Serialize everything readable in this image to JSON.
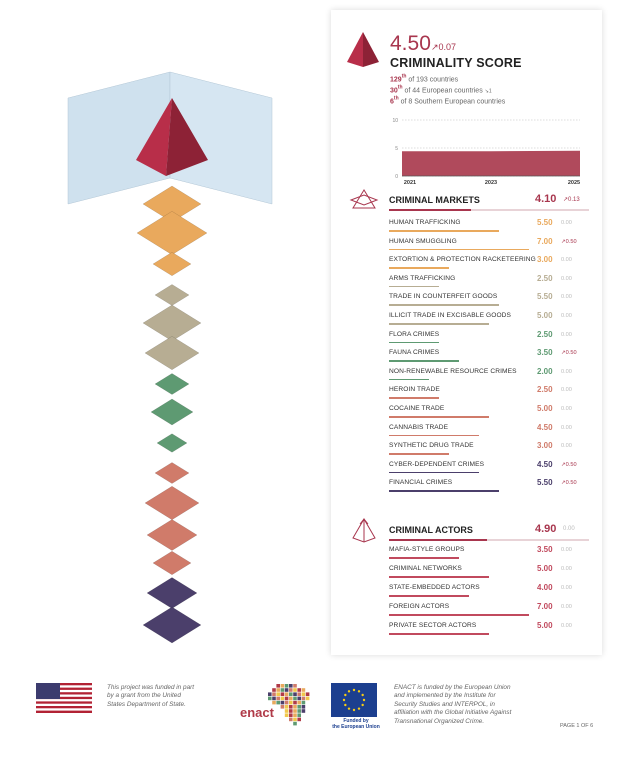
{
  "score": {
    "value": "4.50",
    "delta": "↗0.07",
    "title": "CRIMINALITY SCORE",
    "rank_world_pos": "129",
    "rank_world_suffix": "th",
    "rank_world_text": " of 193 countries",
    "rank_europe_pos": "30",
    "rank_europe_suffix": "th",
    "rank_europe_text": " of 44 European countries",
    "rank_europe_delta": "↘1",
    "rank_region_pos": "6",
    "rank_region_suffix": "th",
    "rank_region_text": " of 8 Southern European countries"
  },
  "mini_chart": {
    "type": "area",
    "x": [
      "2021",
      "2023",
      "2025"
    ],
    "y_ticks": [
      "10",
      "5",
      "0"
    ],
    "values": [
      4.43,
      4.43,
      4.5
    ],
    "ylim": [
      0,
      10
    ],
    "color": "#b04a5c"
  },
  "markets": {
    "title": "CRIMINAL MARKETS",
    "value": "4.10",
    "delta": "↗0.13",
    "items": [
      {
        "label": "HUMAN TRAFFICKING",
        "value": "5.50",
        "delta": "0.00",
        "up": false,
        "score": 5.5,
        "color": "#e9a95d"
      },
      {
        "label": "HUMAN SMUGGLING",
        "value": "7.00",
        "delta": "↗0.50",
        "up": true,
        "score": 7.0,
        "color": "#e9a95d"
      },
      {
        "label": "EXTORTION & PROTECTION RACKETEERING",
        "value": "3.00",
        "delta": "0.00",
        "up": false,
        "score": 3.0,
        "color": "#e9a95d"
      },
      {
        "label": "ARMS TRAFFICKING",
        "value": "2.50",
        "delta": "0.00",
        "up": false,
        "score": 2.5,
        "color": "#b7ad93"
      },
      {
        "label": "TRADE IN COUNTERFEIT GOODS",
        "value": "5.50",
        "delta": "0.00",
        "up": false,
        "score": 5.5,
        "color": "#b7ad93"
      },
      {
        "label": "ILLICIT TRADE IN EXCISABLE GOODS",
        "value": "5.00",
        "delta": "0.00",
        "up": false,
        "score": 5.0,
        "color": "#b7ad93"
      },
      {
        "label": "FLORA CRIMES",
        "value": "2.50",
        "delta": "0.00",
        "up": false,
        "score": 2.5,
        "color": "#5e9a72"
      },
      {
        "label": "FAUNA CRIMES",
        "value": "3.50",
        "delta": "↗0.50",
        "up": true,
        "score": 3.5,
        "color": "#5e9a72"
      },
      {
        "label": "NON-RENEWABLE RESOURCE CRIMES",
        "value": "2.00",
        "delta": "0.00",
        "up": false,
        "score": 2.0,
        "color": "#5e9a72"
      },
      {
        "label": "HEROIN TRADE",
        "value": "2.50",
        "delta": "0.00",
        "up": false,
        "score": 2.5,
        "color": "#d07b6a"
      },
      {
        "label": "COCAINE TRADE",
        "value": "5.00",
        "delta": "0.00",
        "up": false,
        "score": 5.0,
        "color": "#d07b6a"
      },
      {
        "label": "CANNABIS TRADE",
        "value": "4.50",
        "delta": "0.00",
        "up": false,
        "score": 4.5,
        "color": "#d07b6a"
      },
      {
        "label": "SYNTHETIC DRUG TRADE",
        "value": "3.00",
        "delta": "0.00",
        "up": false,
        "score": 3.0,
        "color": "#d07b6a"
      },
      {
        "label": "CYBER-DEPENDENT CRIMES",
        "value": "4.50",
        "delta": "↗0.50",
        "up": true,
        "score": 4.5,
        "color": "#4b3f6b"
      },
      {
        "label": "FINANCIAL CRIMES",
        "value": "5.50",
        "delta": "↗0.50",
        "up": true,
        "score": 5.5,
        "color": "#4b3f6b"
      }
    ]
  },
  "actors": {
    "title": "CRIMINAL ACTORS",
    "value": "4.90",
    "delta": "0.00",
    "items": [
      {
        "label": "MAFIA-STYLE GROUPS",
        "value": "3.50",
        "delta": "0.00",
        "up": false,
        "score": 3.5,
        "color": "#c14a5e"
      },
      {
        "label": "CRIMINAL NETWORKS",
        "value": "5.00",
        "delta": "0.00",
        "up": false,
        "score": 5.0,
        "color": "#c14a5e"
      },
      {
        "label": "STATE-EMBEDDED ACTORS",
        "value": "4.00",
        "delta": "0.00",
        "up": false,
        "score": 4.0,
        "color": "#c14a5e"
      },
      {
        "label": "FOREIGN ACTORS",
        "value": "7.00",
        "delta": "0.00",
        "up": false,
        "score": 7.0,
        "color": "#c14a5e"
      },
      {
        "label": "PRIVATE SECTOR ACTORS",
        "value": "5.00",
        "delta": "0.00",
        "up": false,
        "score": 5.0,
        "color": "#c14a5e"
      }
    ]
  },
  "footer": {
    "us_text_1": "This project was funded in part",
    "us_text_2": "by a grant from the United",
    "us_text_3": "States Department of State.",
    "enact_logo": "enact",
    "eu_caption_1": "Funded by",
    "eu_caption_2": "the European Union",
    "eu_text_1": "ENACT is funded by the European Union",
    "eu_text_2": "and implemented by the Institute for",
    "eu_text_3": "Security Studies and INTERPOL, in",
    "eu_text_4": "affiliation with the Global Initiative Against",
    "eu_text_5": "Transnational Organized Crime.",
    "page": "PAGE 1 OF 6"
  },
  "colors": {
    "accent": "#a8364e",
    "orange": "#e9a95d",
    "beige": "#b7ad93",
    "green": "#5e9a72",
    "salmon": "#d07b6a",
    "purple": "#4b3f6b"
  }
}
